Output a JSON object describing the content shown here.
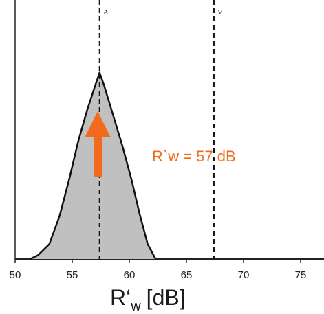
{
  "chart_data": {
    "type": "area",
    "xlabel": "R‘",
    "xlabel_sub": "w",
    "xlabel_unit": "[dB]",
    "xlim": [
      50,
      77
    ],
    "ticks": [
      50,
      55,
      60,
      65,
      70,
      75
    ],
    "grid": false,
    "series": [
      {
        "fill": "#c0c0c0",
        "x": [
          51.3,
          52.0,
          53.0,
          53.9,
          54.8,
          55.5,
          56.3,
          57.0,
          57.4,
          57.8,
          58.6,
          59.4,
          60.2,
          60.9,
          61.6,
          62.3
        ],
        "y": [
          0.0,
          0.02,
          0.08,
          0.23,
          0.44,
          0.62,
          0.79,
          0.92,
          0.99,
          0.92,
          0.76,
          0.6,
          0.42,
          0.24,
          0.08,
          0.0
        ]
      }
    ],
    "markers": [
      {
        "x": 57.4,
        "label": "A"
      },
      {
        "x": 67.4,
        "label": "V"
      }
    ],
    "annotation": {
      "text": "R`w = 57 dB",
      "color": "#f26b1d",
      "arrow": "up-at-A"
    }
  }
}
